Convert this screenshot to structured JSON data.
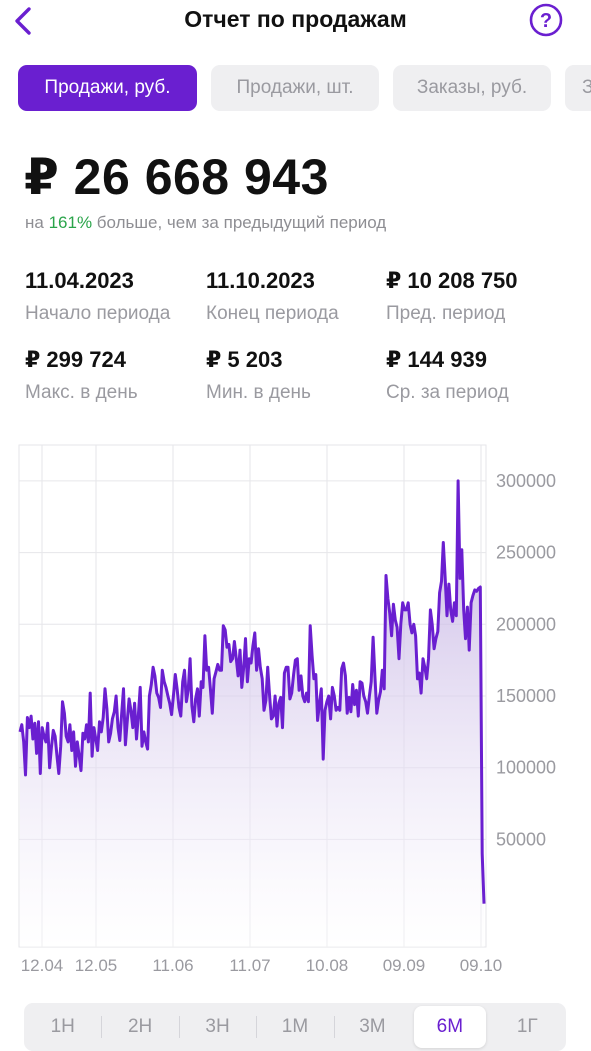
{
  "header": {
    "title": "Отчет по продажам",
    "back_icon": "chevron-left-icon",
    "help_icon": "question-circle-icon"
  },
  "colors": {
    "accent": "#6a1fd0",
    "positive": "#2aa44a",
    "muted": "#9a9aa0"
  },
  "tabs": [
    {
      "label": "Продажи, руб.",
      "active": true
    },
    {
      "label": "Продажи, шт.",
      "active": false
    },
    {
      "label": "Заказы, руб.",
      "active": false
    },
    {
      "label": "З",
      "active": false
    }
  ],
  "summary": {
    "total": "₽ 26 668 943",
    "compare_prefix": "на ",
    "compare_pct": "161%",
    "compare_suffix": " больше, чем за предыдущий период"
  },
  "stats": [
    {
      "value": "11.04.2023",
      "label": "Начало периода"
    },
    {
      "value": "11.10.2023",
      "label": "Конец периода"
    },
    {
      "value": "₽  10 208 750",
      "label": "Пред. период"
    },
    {
      "value": "₽ 299 724",
      "label": "Макс. в день"
    },
    {
      "value": "₽ 5 203",
      "label": "Мин. в день"
    },
    {
      "value": "₽ 144 939",
      "label": "Ср. за период"
    }
  ],
  "ranges": [
    {
      "label": "1Н",
      "active": false
    },
    {
      "label": "2Н",
      "active": false
    },
    {
      "label": "3Н",
      "active": false
    },
    {
      "label": "1М",
      "active": false
    },
    {
      "label": "3М",
      "active": false
    },
    {
      "label": "6М",
      "active": true
    },
    {
      "label": "1Г",
      "active": false
    }
  ],
  "chart_data": {
    "type": "area",
    "title": "",
    "xlabel": "",
    "ylabel": "",
    "x_ticks": [
      "12.04",
      "12.05",
      "11.06",
      "11.07",
      "10.08",
      "09.09",
      "09.10"
    ],
    "y_ticks": [
      "300000",
      "250000",
      "200000",
      "150000",
      "100000",
      "50000"
    ],
    "ylim": [
      -25000,
      325000
    ],
    "grid": true,
    "series": [
      {
        "values": [
          125000,
          130000,
          118000,
          95000,
          135000,
          128000,
          136000,
          120000,
          131000,
          110000,
          132000,
          96000,
          128000,
          122000,
          118000,
          131000,
          100000,
          114000,
          126000,
          122000,
          108000,
          96000,
          115000,
          146000,
          138000,
          122000,
          118000,
          130000,
          112000,
          125000,
          101000,
          118000,
          108000,
          98000,
          124000,
          120000,
          130000,
          118000,
          152000,
          108000,
          128000,
          120000,
          112000,
          132000,
          125000,
          135000,
          155000,
          141000,
          118000,
          124000,
          134000,
          139000,
          150000,
          128000,
          119000,
          138000,
          155000,
          116000,
          132000,
          148000,
          140000,
          128000,
          145000,
          120000,
          136000,
          156000,
          115000,
          125000,
          118000,
          113000,
          150000,
          158000,
          170000,
          164000,
          152000,
          149000,
          142000,
          168000,
          160000,
          156000,
          150000,
          145000,
          137000,
          150000,
          165000,
          155000,
          142000,
          136000,
          160000,
          168000,
          146000,
          154000,
          176000,
          143000,
          132000,
          148000,
          155000,
          136000,
          160000,
          156000,
          192000,
          168000,
          170000,
          155000,
          138000,
          162000,
          167000,
          172000,
          168000,
          168000,
          199000,
          196000,
          184000,
          186000,
          174000,
          176000,
          188000,
          176000,
          164000,
          182000,
          156000,
          170000,
          190000,
          160000,
          176000,
          173000,
          185000,
          194000,
          168000,
          183000,
          170000,
          162000,
          140000,
          147000,
          170000,
          150000,
          134000,
          136000,
          150000,
          129000,
          145000,
          149000,
          128000,
          166000,
          170000,
          170000,
          148000,
          152000,
          165000,
          175000,
          176000,
          154000,
          164000,
          150000,
          146000,
          152000,
          146000,
          199000,
          178000,
          162000,
          165000,
          133000,
          145000,
          155000,
          106000,
          140000,
          146000,
          150000,
          134000,
          156000,
          150000,
          140000,
          142000,
          140000,
          169000,
          173000,
          164000,
          138000,
          149000,
          139000,
          158000,
          144000,
          154000,
          136000,
          160000,
          159000,
          150000,
          146000,
          138000,
          150000,
          160000,
          191000,
          164000,
          138000,
          147000,
          153000,
          168000,
          155000,
          234000,
          218000,
          208000,
          192000,
          214000,
          203000,
          198000,
          176000,
          200000,
          215000,
          210000,
          210000,
          215000,
          200000,
          194000,
          200000,
          192000,
          162000,
          166000,
          152000,
          176000,
          170000,
          162000,
          176000,
          210000,
          200000,
          183000,
          190000,
          195000,
          222000,
          230000,
          257000,
          232000,
          206000,
          228000,
          210000,
          202000,
          215000,
          206000,
          300000,
          232000,
          252000,
          210000,
          190000,
          212000,
          182000,
          215000,
          220000,
          224000,
          223000,
          225000,
          226000,
          40000,
          5203
        ]
      }
    ]
  }
}
